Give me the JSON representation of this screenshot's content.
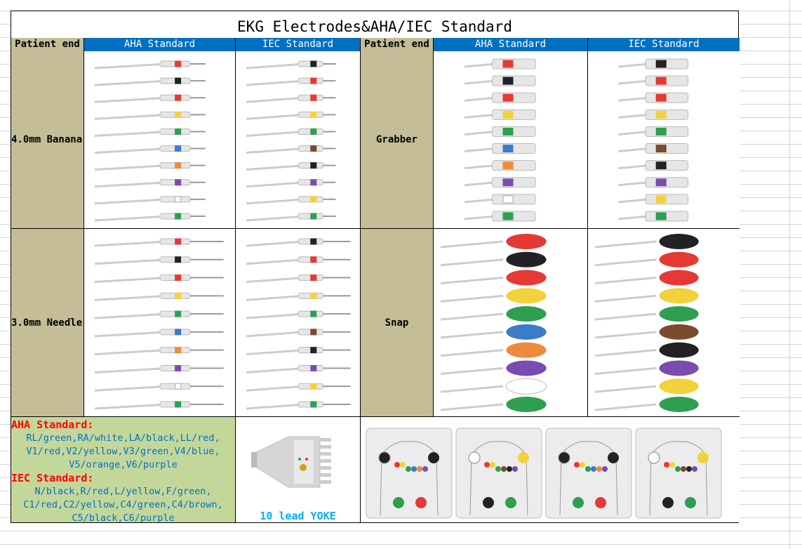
{
  "title": "EKG Electrodes&AHA/IEC Standard",
  "headers": [
    "Patient end",
    "AHA Standard",
    "IEC Standard",
    "Patient end",
    "AHA Standard",
    "IEC Standard"
  ],
  "rows": [
    {
      "left_end": "4.0mm Banana",
      "right_end": "Grabber"
    },
    {
      "left_end": "3.0mm Needle",
      "right_end": "Snap"
    }
  ],
  "legend": {
    "aha_title": "AHA Standard:",
    "aha_lines": [
      "RL/green,RA/white,LA/black,LL/red,",
      "V1/red,V2/yellow,V3/green,V4/blue,",
      "V5/orange,V6/purple"
    ],
    "iec_title": "IEC Standard:",
    "iec_lines": [
      "N/black,R/red,L/yellow,F/green,",
      "C1/red,C2/yellow,C4/green,C4/brown,",
      "C5/black,C6/purple"
    ]
  },
  "yoke_label": "10 lead YOKE",
  "colors": {
    "header_blue": "#0070c0",
    "patient_end_tan": "#c4bd97",
    "legend_green": "#c4d79b",
    "aha_leads": [
      "#e53935",
      "#222222",
      "#e53935",
      "#f2d23a",
      "#2e9e4f",
      "#3a7cc9",
      "#ef8a3a",
      "#7a4bb0",
      "#ffffff",
      "#2e9e4f"
    ],
    "iec_leads": [
      "#222222",
      "#e53935",
      "#e53935",
      "#f2d23a",
      "#2e9e4f",
      "#7a4b2e",
      "#222222",
      "#7a4bb0",
      "#f2d23a",
      "#2e9e4f"
    ]
  }
}
